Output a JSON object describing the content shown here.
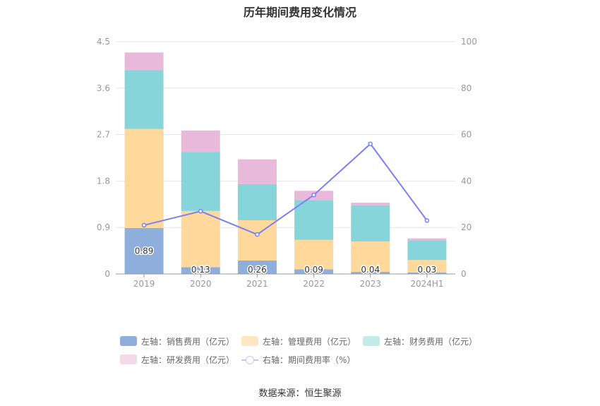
{
  "chart_data": {
    "type": "bar",
    "title": "历年期间费用变化情况",
    "categories": [
      "2019",
      "2020",
      "2021",
      "2022",
      "2023",
      "2024H1"
    ],
    "left_axis": {
      "ylim": [
        0,
        4.5
      ],
      "ticks": [
        "0",
        "0.9",
        "1.8",
        "2.7",
        "3.6",
        "4.5"
      ]
    },
    "right_axis": {
      "ylim": [
        0,
        100
      ],
      "ticks": [
        "0",
        "20",
        "40",
        "60",
        "80",
        "100"
      ]
    },
    "series": [
      {
        "name": "左轴：销售费用（亿元）",
        "kind": "bar",
        "color": "#8eaedc",
        "values": [
          0.89,
          0.13,
          0.26,
          0.09,
          0.04,
          0.03
        ],
        "labels": [
          "0.89",
          "0.13",
          "0.26",
          "0.09",
          "0.04",
          "0.03"
        ]
      },
      {
        "name": "左轴：管理费用（亿元）",
        "kind": "bar",
        "color": "#fed99b",
        "values": [
          1.92,
          1.09,
          0.78,
          0.57,
          0.59,
          0.24
        ]
      },
      {
        "name": "左轴：财务费用（亿元）",
        "kind": "bar",
        "color": "#86d5da",
        "values": [
          1.14,
          1.14,
          0.7,
          0.77,
          0.7,
          0.38
        ]
      },
      {
        "name": "左轴：研发费用（亿元）",
        "kind": "bar",
        "color": "#e8b9da",
        "values": [
          0.34,
          0.42,
          0.48,
          0.18,
          0.05,
          0.04
        ]
      },
      {
        "name": "右轴：期间费用率（%）",
        "kind": "line",
        "color": "#7b80f2",
        "values": [
          21,
          27,
          17,
          34,
          56,
          23
        ]
      }
    ],
    "legend_position": "bottom",
    "grid": true
  },
  "legend_items": [
    {
      "label": "左轴：销售费用（亿元）",
      "color": "#8eaedc"
    },
    {
      "label": "左轴：管理费用（亿元）",
      "color": "#fde6c0"
    },
    {
      "label": "左轴：财务费用（亿元）",
      "color": "#c2ebec"
    },
    {
      "label": "左轴：研发费用（亿元）",
      "color": "#f3d9ea"
    },
    {
      "label": "右轴：期间费用率（%）",
      "color": "#c5c8f5"
    }
  ],
  "source": "数据来源：恒生聚源"
}
